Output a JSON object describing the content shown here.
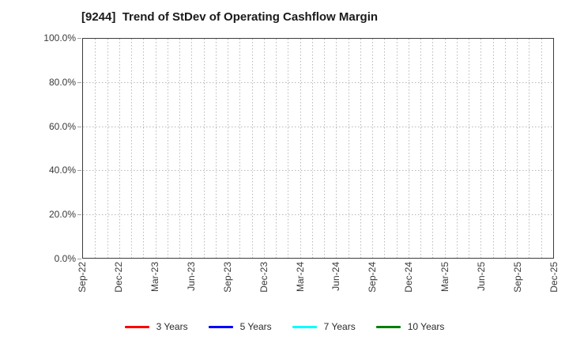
{
  "title": "[9244]  Trend of StDev of Operating Cashflow Margin",
  "axes": {
    "y_ticks": [
      "0.0%",
      "20.0%",
      "40.0%",
      "60.0%",
      "80.0%",
      "100.0%"
    ],
    "x_ticks": [
      "Sep-22",
      "Dec-22",
      "Mar-23",
      "Jun-23",
      "Sep-23",
      "Dec-23",
      "Mar-24",
      "Jun-24",
      "Sep-24",
      "Dec-24",
      "Mar-25",
      "Jun-25",
      "Sep-25",
      "Dec-25"
    ],
    "x_minor_divisions_per_interval": 3
  },
  "legend": {
    "items": [
      {
        "label": "3 Years",
        "color": "#ff0000"
      },
      {
        "label": "5 Years",
        "color": "#0000ff"
      },
      {
        "label": "7 Years",
        "color": "#00ffff"
      },
      {
        "label": "10 Years",
        "color": "#008000"
      }
    ]
  },
  "colors": {
    "background": "#ffffff",
    "grid": "#b8b8b8",
    "axis_border": "#3c3c3c",
    "title_text": "#1a1a1a",
    "tick_text": "#3a3a3a"
  },
  "chart_data": {
    "type": "line",
    "title": "[9244]  Trend of StDev of Operating Cashflow Margin",
    "x": [
      "Sep-22",
      "Dec-22",
      "Mar-23",
      "Jun-23",
      "Sep-23",
      "Dec-23",
      "Mar-24",
      "Jun-24",
      "Sep-24",
      "Dec-24",
      "Mar-25",
      "Jun-25",
      "Sep-25",
      "Dec-25"
    ],
    "series": [
      {
        "name": "3 Years",
        "color": "#ff0000",
        "values": []
      },
      {
        "name": "5 Years",
        "color": "#0000ff",
        "values": []
      },
      {
        "name": "7 Years",
        "color": "#00ffff",
        "values": []
      },
      {
        "name": "10 Years",
        "color": "#008000",
        "values": []
      }
    ],
    "xlabel": "",
    "ylabel": "",
    "ylim": [
      0,
      100
    ],
    "y_tick_format": "percent",
    "y_tick_step": 20,
    "grid": true,
    "grid_style": "dotted",
    "legend_position": "bottom center",
    "plot_area_empty": true
  }
}
